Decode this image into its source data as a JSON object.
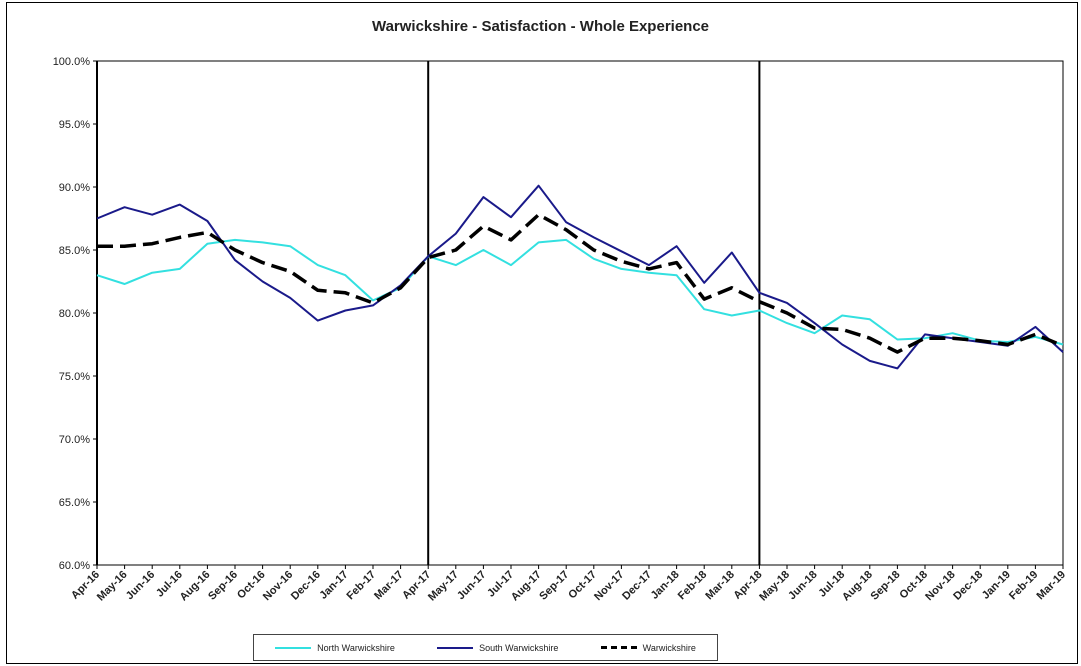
{
  "chart_data": {
    "type": "line",
    "title": "Warwickshire - Satisfaction - Whole Experience",
    "xlabel": "",
    "ylabel": "",
    "ylim": [
      60,
      100
    ],
    "yticks": [
      "60.0%",
      "65.0%",
      "70.0%",
      "75.0%",
      "80.0%",
      "85.0%",
      "90.0%",
      "95.0%",
      "100.0%"
    ],
    "grid": false,
    "legend_position": "bottom",
    "categories": [
      "Apr-16",
      "May-16",
      "Jun-16",
      "Jul-16",
      "Aug-16",
      "Sep-16",
      "Oct-16",
      "Nov-16",
      "Dec-16",
      "Jan-17",
      "Feb-17",
      "Mar-17",
      "Apr-17",
      "May-17",
      "Jun-17",
      "Jul-17",
      "Aug-17",
      "Sep-17",
      "Oct-17",
      "Nov-17",
      "Dec-17",
      "Jan-18",
      "Feb-18",
      "Mar-18",
      "Apr-18",
      "May-18",
      "Jun-18",
      "Jul-18",
      "Aug-18",
      "Sep-18",
      "Oct-18",
      "Nov-18",
      "Dec-18",
      "Jan-19",
      "Feb-19",
      "Mar-19"
    ],
    "year_dividers": [
      "Apr-16",
      "Apr-17",
      "Apr-18"
    ],
    "series": [
      {
        "name": "North Warwickshire",
        "color": "#33e0e0",
        "style": "solid",
        "values": [
          83.0,
          82.3,
          83.2,
          83.5,
          85.5,
          85.8,
          85.6,
          85.3,
          83.8,
          83.0,
          81.0,
          82.0,
          84.5,
          83.8,
          85.0,
          83.8,
          85.6,
          85.8,
          84.3,
          83.5,
          83.2,
          83.0,
          80.3,
          79.8,
          80.2,
          79.2,
          78.4,
          79.8,
          79.5,
          77.9,
          78.0,
          78.4,
          77.8,
          77.7,
          78.1,
          77.5
        ]
      },
      {
        "name": "South Warwickshire",
        "color": "#1a1a8a",
        "style": "solid",
        "values": [
          87.5,
          88.4,
          87.8,
          88.6,
          87.3,
          84.2,
          82.5,
          81.2,
          79.4,
          80.2,
          80.6,
          82.2,
          84.5,
          86.3,
          89.2,
          87.6,
          90.1,
          87.2,
          86.0,
          84.9,
          83.8,
          85.3,
          82.4,
          84.8,
          81.6,
          80.8,
          79.2,
          77.5,
          76.2,
          75.6,
          78.3,
          78.0,
          77.7,
          77.4,
          78.9,
          76.9
        ]
      },
      {
        "name": "Warwickshire",
        "color": "#000000",
        "style": "dashed",
        "values": [
          85.3,
          85.3,
          85.5,
          86.0,
          86.4,
          85.0,
          84.0,
          83.3,
          81.8,
          81.6,
          80.8,
          82.0,
          84.4,
          85.0,
          86.9,
          85.8,
          87.8,
          86.6,
          85.0,
          84.1,
          83.5,
          84.0,
          81.1,
          82.0,
          80.9,
          80.0,
          78.8,
          78.7,
          78.0,
          76.9,
          78.0,
          78.0,
          77.8,
          77.5,
          78.3,
          77.4
        ]
      }
    ]
  }
}
